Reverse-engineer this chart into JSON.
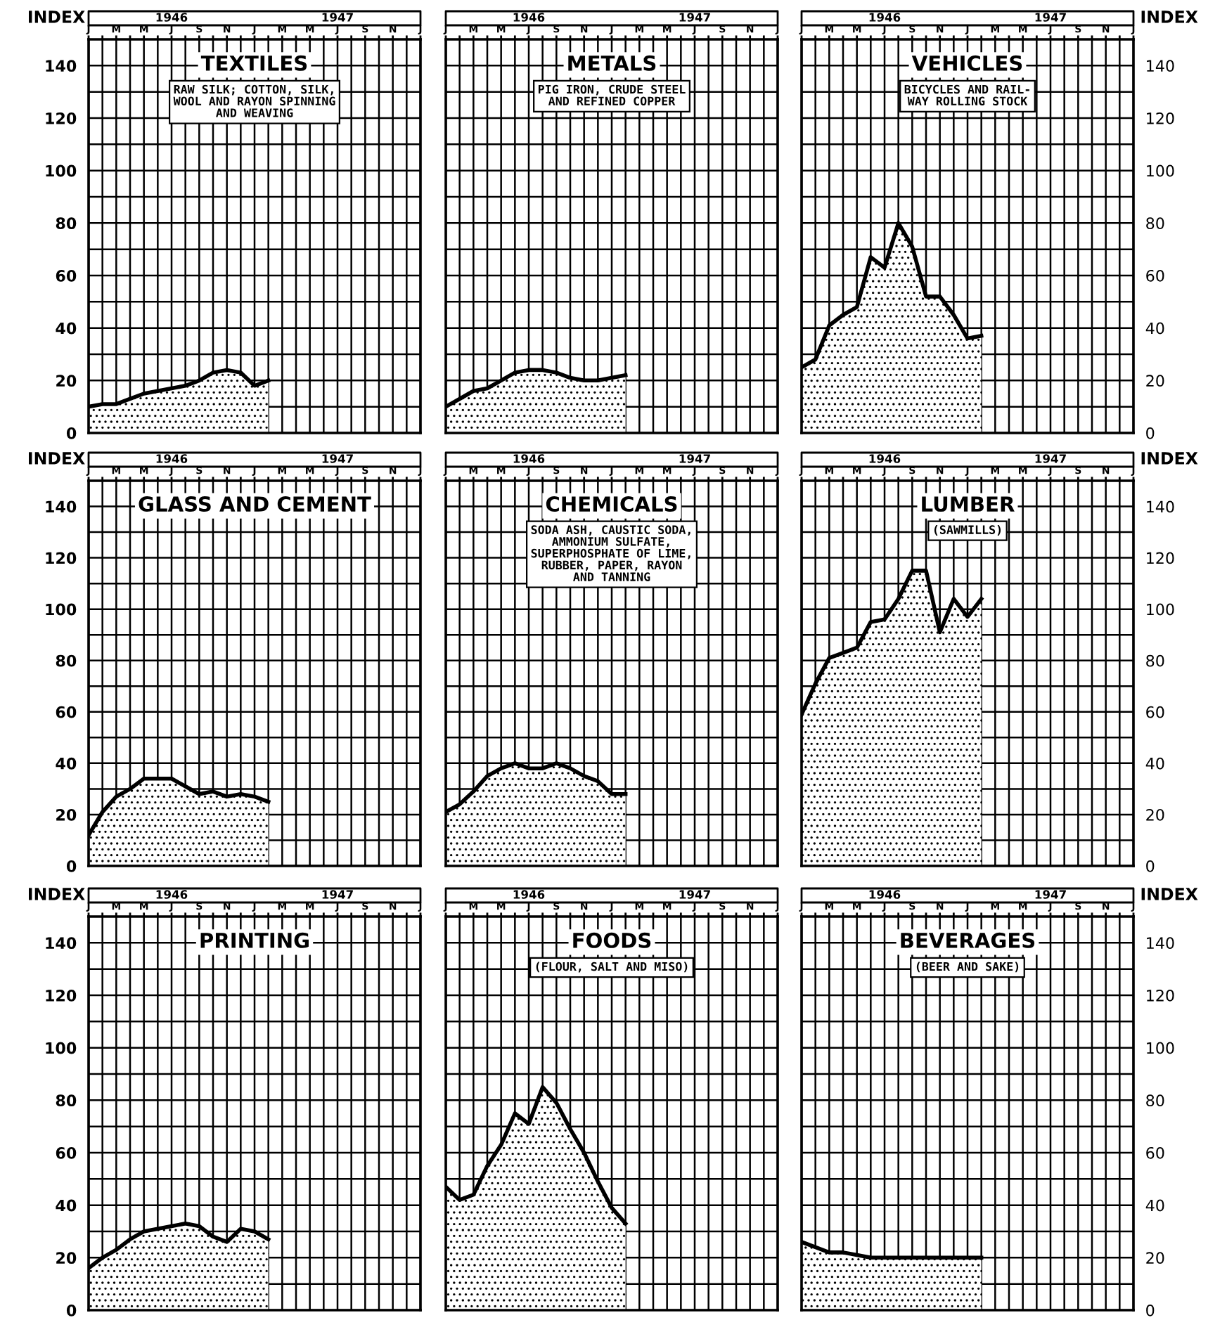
{
  "chart_data": [
    {
      "type": "area",
      "title": "TEXTILES",
      "subtitle": "RAW SILK; COTTON, SILK,\nWOOL AND RAYON SPINNING\nAND WEAVING",
      "ylabel": "INDEX",
      "annotations": [
        "1946",
        "1947"
      ],
      "categories": [
        "J",
        null,
        "M",
        null,
        "M",
        null,
        "J",
        null,
        "S",
        null,
        "N",
        null,
        "J",
        null,
        "M",
        null,
        "M",
        null,
        "J",
        null,
        "S",
        null,
        "N",
        null,
        "J"
      ],
      "values": [
        10,
        11,
        11,
        13,
        15,
        16,
        17,
        18,
        20,
        23,
        24,
        23,
        18,
        20,
        null,
        null,
        null,
        null,
        null,
        null,
        null,
        null,
        null,
        null,
        null
      ],
      "color": "#000000",
      "ylim": [
        0,
        150
      ],
      "yticks": [
        0,
        {
          "value": 10,
          "label": null
        },
        20,
        {
          "value": 30,
          "label": null
        },
        40,
        {
          "value": 50,
          "label": null
        },
        60,
        {
          "value": 70,
          "label": null
        },
        80,
        {
          "value": 90,
          "label": null
        },
        100,
        {
          "value": 110,
          "label": null
        },
        120,
        {
          "value": 130,
          "label": null
        },
        140
      ],
      "grid": true
    },
    {
      "type": "area",
      "title": "METALS",
      "subtitle": "PIG IRON, CRUDE STEEL\nAND REFINED COPPER",
      "annotations": [
        "1946",
        "1947"
      ],
      "categories": [
        "J",
        null,
        "M",
        null,
        "M",
        null,
        "J",
        null,
        "S",
        null,
        "N",
        null,
        "J",
        null,
        "M",
        null,
        "M",
        null,
        "J",
        null,
        "S",
        null,
        "N",
        null,
        "J"
      ],
      "values": [
        10,
        13,
        16,
        17,
        20,
        23,
        24,
        24,
        23,
        21,
        20,
        20,
        21,
        22,
        null,
        null,
        null,
        null,
        null,
        null,
        null,
        null,
        null,
        null,
        null
      ],
      "color": "#000000",
      "ylim": [
        0,
        150
      ],
      "yticks": [
        0,
        {
          "value": 10,
          "label": null
        },
        20,
        {
          "value": 30,
          "label": null
        },
        40,
        {
          "value": 50,
          "label": null
        },
        60,
        {
          "value": 70,
          "label": null
        },
        80,
        {
          "value": 90,
          "label": null
        },
        100,
        {
          "value": 110,
          "label": null
        },
        120,
        {
          "value": 130,
          "label": null
        },
        140
      ],
      "grid": true,
      "tick_labels": "x"
    },
    {
      "type": "area",
      "title": "VEHICLES",
      "subtitle": "BICYCLES AND RAIL-\nWAY ROLLING STOCK",
      "y2label": "INDEX",
      "annotations": [
        "1946",
        "1947"
      ],
      "categories": [
        "J",
        null,
        "M",
        null,
        "M",
        null,
        "J",
        null,
        "S",
        null,
        "N",
        null,
        "J",
        null,
        "M",
        null,
        "M",
        null,
        "J",
        null,
        "S",
        null,
        "N",
        null,
        "J"
      ],
      "series": [
        {
          "values": [
            25,
            28,
            41,
            45,
            48,
            67,
            63,
            80,
            71,
            52,
            52,
            45,
            36,
            37,
            null,
            null,
            null,
            null,
            null,
            null,
            null,
            null,
            null,
            null,
            null
          ],
          "color": "#000000",
          "axis": "y2"
        }
      ],
      "y2lim": [
        0,
        150
      ],
      "y2ticks": [
        0,
        {
          "value": 10,
          "label": null
        },
        20,
        {
          "value": 30,
          "label": null
        },
        40,
        {
          "value": 50,
          "label": null
        },
        60,
        {
          "value": 70,
          "label": null
        },
        80,
        {
          "value": 90,
          "label": null
        },
        100,
        {
          "value": 110,
          "label": null
        },
        120,
        {
          "value": 130,
          "label": null
        },
        140
      ],
      "grid": true
    },
    {
      "type": "area",
      "title": "GLASS AND CEMENT",
      "ylabel": "INDEX",
      "annotations": [
        "1946",
        "1947"
      ],
      "categories": [
        "J",
        null,
        "M",
        null,
        "M",
        null,
        "J",
        null,
        "S",
        null,
        "N",
        null,
        "J",
        null,
        "M",
        null,
        "M",
        null,
        "J",
        null,
        "S",
        null,
        "N",
        null,
        "J"
      ],
      "values": [
        12,
        21,
        27,
        30,
        34,
        34,
        34,
        31,
        28,
        29,
        27,
        28,
        27,
        25,
        null,
        null,
        null,
        null,
        null,
        null,
        null,
        null,
        null,
        null,
        null
      ],
      "color": "#000000",
      "ylim": [
        0,
        150
      ],
      "yticks": [
        0,
        {
          "value": 10,
          "label": null
        },
        20,
        {
          "value": 30,
          "label": null
        },
        40,
        {
          "value": 50,
          "label": null
        },
        60,
        {
          "value": 70,
          "label": null
        },
        80,
        {
          "value": 90,
          "label": null
        },
        100,
        {
          "value": 110,
          "label": null
        },
        120,
        {
          "value": 130,
          "label": null
        },
        140
      ],
      "grid": true
    },
    {
      "type": "area",
      "title": "CHEMICALS",
      "subtitle": "SODA ASH, CAUSTIC SODA,\nAMMONIUM SULFATE,\nSUPERPHOSPHATE OF LIME,\nRUBBER, PAPER, RAYON\nAND TANNING",
      "annotations": [
        "1946",
        "1947"
      ],
      "categories": [
        "J",
        null,
        "M",
        null,
        "M",
        null,
        "J",
        null,
        "S",
        null,
        "N",
        null,
        "J",
        null,
        "M",
        null,
        "M",
        null,
        "J",
        null,
        "S",
        null,
        "N",
        null,
        "J"
      ],
      "values": [
        21,
        24,
        29,
        35,
        38,
        40,
        38,
        38,
        40,
        38,
        35,
        33,
        28,
        28,
        null,
        null,
        null,
        null,
        null,
        null,
        null,
        null,
        null,
        null,
        null
      ],
      "color": "#000000",
      "ylim": [
        0,
        150
      ],
      "yticks": [
        0,
        {
          "value": 10,
          "label": null
        },
        20,
        {
          "value": 30,
          "label": null
        },
        40,
        {
          "value": 50,
          "label": null
        },
        60,
        {
          "value": 70,
          "label": null
        },
        80,
        {
          "value": 90,
          "label": null
        },
        100,
        {
          "value": 110,
          "label": null
        },
        120,
        {
          "value": 130,
          "label": null
        },
        140
      ],
      "grid": true,
      "tick_labels": "x"
    },
    {
      "type": "area",
      "title": "LUMBER",
      "subtitle": "(SAWMILLS)",
      "y2label": "INDEX",
      "annotations": [
        "1946",
        "1947"
      ],
      "categories": [
        "J",
        null,
        "M",
        null,
        "M",
        null,
        "J",
        null,
        "S",
        null,
        "N",
        null,
        "J",
        null,
        "M",
        null,
        "M",
        null,
        "J",
        null,
        "S",
        null,
        "N",
        null,
        "J"
      ],
      "series": [
        {
          "values": [
            59,
            71,
            81,
            83,
            85,
            95,
            96,
            104,
            115,
            115,
            91,
            104,
            97,
            104,
            null,
            null,
            null,
            null,
            null,
            null,
            null,
            null,
            null,
            null,
            null
          ],
          "color": "#000000",
          "axis": "y2"
        }
      ],
      "y2lim": [
        0,
        150
      ],
      "y2ticks": [
        0,
        {
          "value": 10,
          "label": null
        },
        20,
        {
          "value": 30,
          "label": null
        },
        40,
        {
          "value": 50,
          "label": null
        },
        60,
        {
          "value": 70,
          "label": null
        },
        80,
        {
          "value": 90,
          "label": null
        },
        100,
        {
          "value": 110,
          "label": null
        },
        120,
        {
          "value": 130,
          "label": null
        },
        140
      ],
      "grid": true
    },
    {
      "type": "area",
      "title": "PRINTING",
      "ylabel": "INDEX",
      "annotations": [
        "1946",
        "1947"
      ],
      "categories": [
        "J",
        null,
        "M",
        null,
        "M",
        null,
        "J",
        null,
        "S",
        null,
        "N",
        null,
        "J",
        null,
        "M",
        null,
        "M",
        null,
        "J",
        null,
        "S",
        null,
        "N",
        null,
        "J"
      ],
      "values": [
        16,
        20,
        23,
        27,
        30,
        31,
        32,
        33,
        32,
        28,
        26,
        31,
        30,
        27,
        null,
        null,
        null,
        null,
        null,
        null,
        null,
        null,
        null,
        null,
        null
      ],
      "color": "#000000",
      "ylim": [
        0,
        150
      ],
      "yticks": [
        0,
        {
          "value": 10,
          "label": null
        },
        20,
        {
          "value": 30,
          "label": null
        },
        40,
        {
          "value": 50,
          "label": null
        },
        60,
        {
          "value": 70,
          "label": null
        },
        80,
        {
          "value": 90,
          "label": null
        },
        100,
        {
          "value": 110,
          "label": null
        },
        120,
        {
          "value": 130,
          "label": null
        },
        140
      ],
      "grid": true
    },
    {
      "type": "area",
      "title": "FOODS",
      "subtitle": "(FLOUR, SALT AND MISO)",
      "annotations": [
        "1946",
        "1947"
      ],
      "categories": [
        "J",
        null,
        "M",
        null,
        "M",
        null,
        "J",
        null,
        "S",
        null,
        "N",
        null,
        "J",
        null,
        "M",
        null,
        "M",
        null,
        "J",
        null,
        "S",
        null,
        "N",
        null,
        "J"
      ],
      "values": [
        47,
        42,
        44,
        55,
        63,
        75,
        71,
        85,
        79,
        69,
        60,
        49,
        39,
        33,
        null,
        null,
        null,
        null,
        null,
        null,
        null,
        null,
        null,
        null,
        null
      ],
      "color": "#000000",
      "ylim": [
        0,
        150
      ],
      "yticks": [
        0,
        {
          "value": 10,
          "label": null
        },
        20,
        {
          "value": 30,
          "label": null
        },
        40,
        {
          "value": 50,
          "label": null
        },
        60,
        {
          "value": 70,
          "label": null
        },
        80,
        {
          "value": 90,
          "label": null
        },
        100,
        {
          "value": 110,
          "label": null
        },
        120,
        {
          "value": 130,
          "label": null
        },
        140
      ],
      "grid": true,
      "tick_labels": "x"
    },
    {
      "type": "area",
      "title": "BEVERAGES",
      "subtitle": "(BEER AND SAKE)",
      "y2label": "INDEX",
      "annotations": [
        "1946",
        "1947"
      ],
      "categories": [
        "J",
        null,
        "M",
        null,
        "M",
        null,
        "J",
        null,
        "S",
        null,
        "N",
        null,
        "J",
        null,
        "M",
        null,
        "M",
        null,
        "J",
        null,
        "S",
        null,
        "N",
        null,
        "J"
      ],
      "series": [
        {
          "values": [
            26,
            24,
            22,
            22,
            21,
            20,
            20,
            20,
            20,
            20,
            20,
            20,
            20,
            20,
            null,
            null,
            null,
            null,
            null,
            null,
            null,
            null,
            null,
            null,
            null
          ],
          "color": "#000000",
          "axis": "y2"
        }
      ],
      "y2lim": [
        0,
        150
      ],
      "y2ticks": [
        0,
        {
          "value": 10,
          "label": null
        },
        20,
        {
          "value": 30,
          "label": null
        },
        40,
        {
          "value": 50,
          "label": null
        },
        60,
        {
          "value": 70,
          "label": null
        },
        80,
        {
          "value": 90,
          "label": null
        },
        100,
        {
          "value": 110,
          "label": null
        },
        120,
        {
          "value": 130,
          "label": null
        },
        140
      ],
      "grid": true
    }
  ]
}
